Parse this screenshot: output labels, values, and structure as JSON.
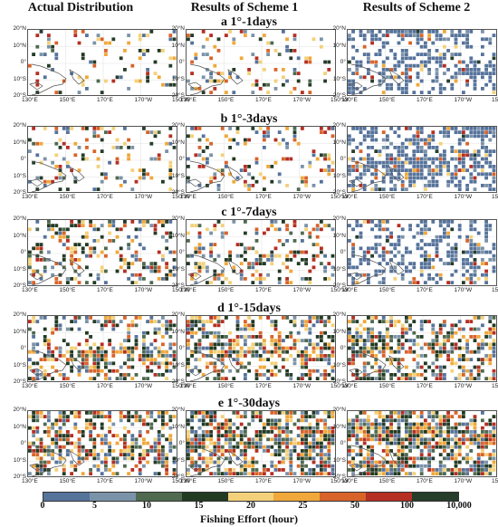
{
  "column_titles": [
    "Actual Distribution",
    "Results of Scheme 1",
    "Results of Scheme 2"
  ],
  "row_titles": [
    "a 1°-1days",
    "b 1°-3days",
    "c 1°-7days",
    "d 1°-15days",
    "e 1°-30days"
  ],
  "lat_labels": [
    "20°N",
    "10°N",
    "0°",
    "10°S",
    "20°S"
  ],
  "lon_labels": [
    "130°E",
    "150°E",
    "170°E",
    "170°W",
    "150°W"
  ],
  "legend": {
    "title": "Fishing Effort (hour)",
    "ticks": [
      "0",
      "5",
      "10",
      "15",
      "20",
      "25",
      "50",
      "100",
      "10,000"
    ],
    "colors": [
      "#56739b",
      "#7b93a8",
      "#4f6a4f",
      "#223a22",
      "#f3d17a",
      "#f0a83a",
      "#d8642a",
      "#b52f23",
      "#263d2a"
    ]
  },
  "panel_densities": [
    [
      0.14,
      0.16,
      0.42
    ],
    [
      0.18,
      0.22,
      0.58
    ],
    [
      0.3,
      0.32,
      0.45
    ],
    [
      0.48,
      0.55,
      0.55
    ],
    [
      0.55,
      0.68,
      0.7
    ]
  ]
}
